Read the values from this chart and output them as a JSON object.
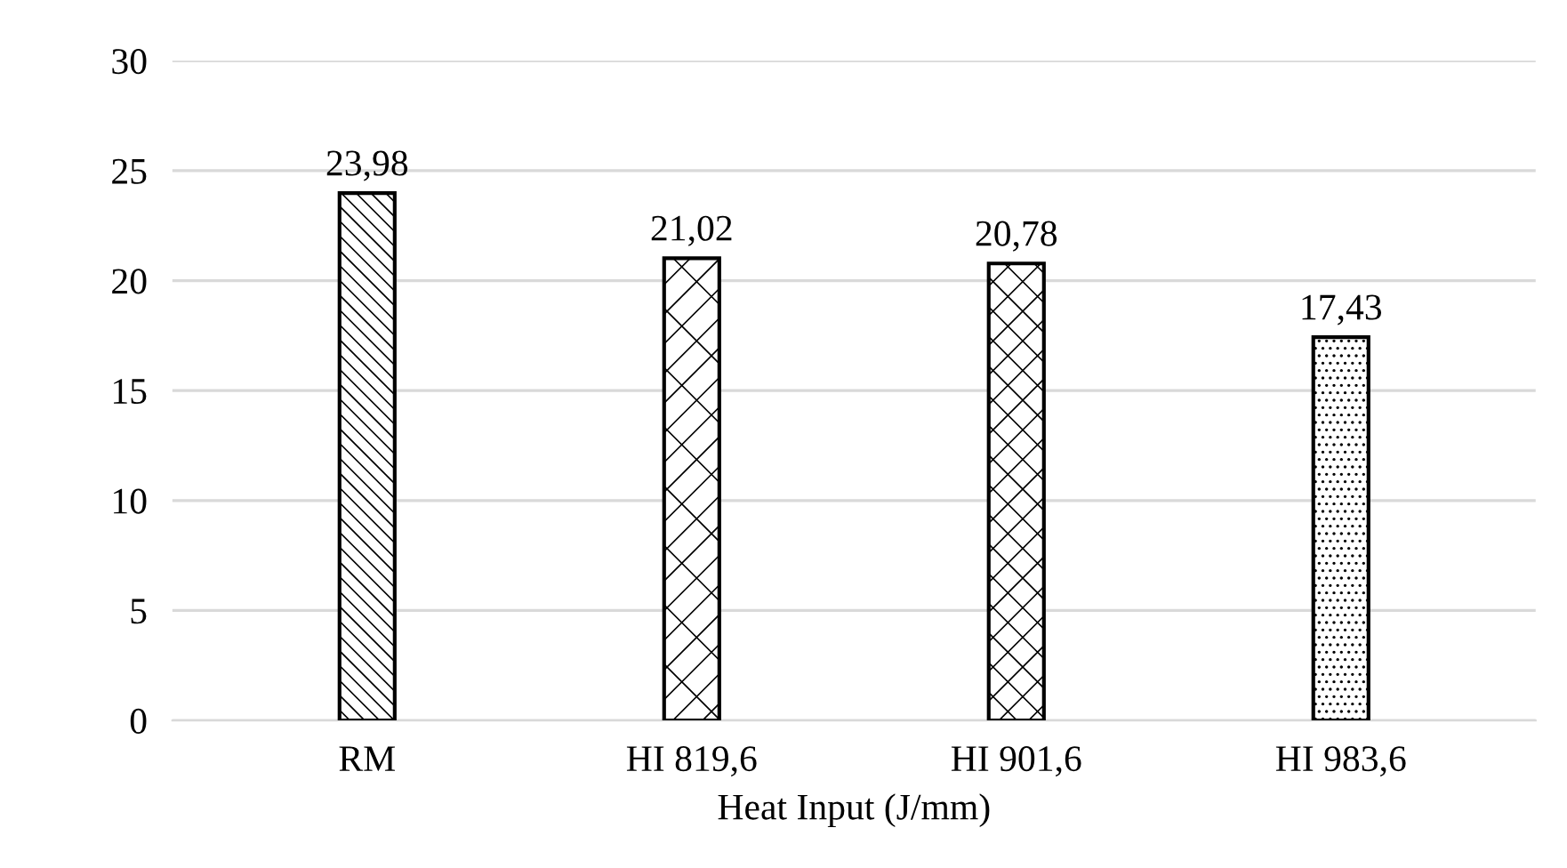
{
  "chart_data": {
    "type": "bar",
    "xlabel": "Heat Input (J/mm)",
    "categories": [
      "RM",
      "HI 819,6",
      "HI 901,6",
      "HI 983,6"
    ],
    "values": [
      23.98,
      21.02,
      20.78,
      17.43
    ],
    "value_labels": [
      "23,98",
      "21,02",
      "20,78",
      "17,43"
    ],
    "color": "#000000",
    "ylim": [
      0,
      30
    ],
    "yticks": [
      0,
      5,
      10,
      15,
      20,
      25,
      30
    ],
    "grid": "y"
  }
}
